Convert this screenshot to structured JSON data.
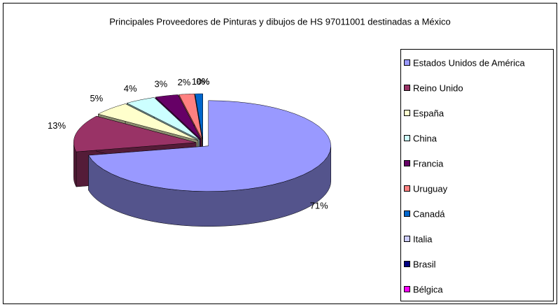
{
  "chart_data": {
    "type": "pie",
    "title": "Principales Proveedores de Pinturas y dibujos de HS 97011001 destinadas a México",
    "categories": [
      "Estados Unidos de América",
      "Reino Unido",
      "España",
      "China",
      "Francia",
      "Uruguay",
      "Canadá",
      "Italia",
      "Brasil",
      "Bélgica"
    ],
    "values": [
      71,
      13,
      5,
      4,
      3,
      2,
      1,
      0,
      0,
      0
    ],
    "value_labels": [
      "71%",
      "13%",
      "5%",
      "4%",
      "3%",
      "2%",
      "1%",
      "0%",
      "0%",
      "0%"
    ],
    "colors": [
      "#9999ff",
      "#993366",
      "#ffffcc",
      "#ccffff",
      "#660066",
      "#ff8080",
      "#0066cc",
      "#ccccff",
      "#000080",
      "#ff00ff"
    ],
    "legend": "right"
  }
}
